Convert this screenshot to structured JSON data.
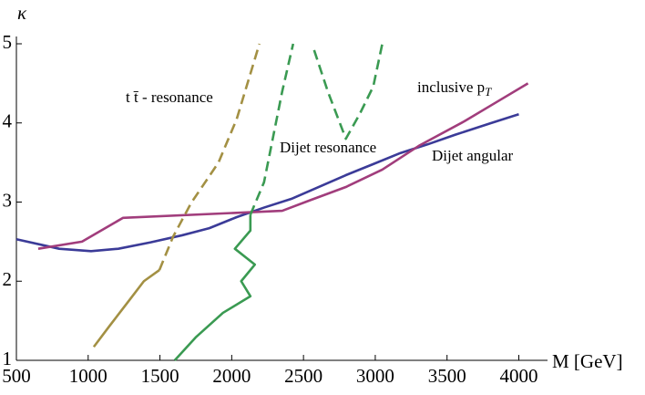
{
  "chart_data": {
    "type": "line",
    "xlabel": "M [GeV]",
    "ylabel": "κ",
    "xlim": [
      500,
      4200
    ],
    "ylim": [
      1,
      5
    ],
    "xticks": [
      500,
      1000,
      1500,
      2000,
      2500,
      3000,
      3500,
      4000
    ],
    "yticks": [
      1,
      2,
      3,
      4,
      5
    ],
    "series": [
      {
        "name": "Dijet angular",
        "color": "#3b3b98",
        "dashed": false,
        "x": [
          500,
          798,
          1020,
          1210,
          1432,
          1654,
          1844,
          2035,
          2225,
          2415,
          2605,
          2795,
          2986,
          3176,
          3366,
          3556,
          3810,
          4000
        ],
        "values": [
          2.53,
          2.41,
          2.38,
          2.41,
          2.49,
          2.58,
          2.67,
          2.81,
          2.93,
          3.04,
          3.19,
          3.34,
          3.48,
          3.62,
          3.73,
          3.85,
          4.0,
          4.11
        ]
      },
      {
        "name": "inclusive p",
        "subscript": "T",
        "color": "#a13d7c",
        "dashed": false,
        "x": [
          652,
          957,
          1242,
          2352,
          2542,
          2795,
          3049,
          3303,
          3620,
          3842,
          4064
        ],
        "values": [
          2.41,
          2.5,
          2.8,
          2.89,
          3.02,
          3.19,
          3.41,
          3.71,
          4.02,
          4.26,
          4.5
        ]
      },
      {
        "name": "t t̄ -  resonance",
        "color": "#a39043",
        "dashed": false,
        "x": [
          1039,
          1147,
          1274,
          1388,
          1496
        ],
        "values": [
          1.17,
          1.43,
          1.73,
          2.0,
          2.14
        ]
      },
      {
        "color": "#a39043",
        "dashed": true,
        "x": [
          1496,
          1591,
          1718,
          1908,
          2035,
          2193
        ],
        "values": [
          2.14,
          2.56,
          2.99,
          3.5,
          4.05,
          5.0
        ]
      },
      {
        "name": "Dijet resonance",
        "color": "#3a9a52",
        "dashed": false,
        "x": [
          1603,
          1749,
          1939,
          2130,
          2066,
          2161,
          2022,
          2130,
          2130
        ],
        "values": [
          1.0,
          1.29,
          1.6,
          1.81,
          2.0,
          2.21,
          2.41,
          2.64,
          2.84
        ]
      },
      {
        "color": "#3a9a52",
        "dashed": true,
        "x": [
          2130,
          2225,
          2288,
          2352,
          2428,
          null,
          2574,
          2669,
          2795,
          2891,
          2986,
          3049
        ],
        "values": [
          2.84,
          3.25,
          3.82,
          4.4,
          5.0,
          null,
          4.92,
          4.4,
          3.8,
          4.11,
          4.46,
          5.0
        ]
      }
    ]
  }
}
